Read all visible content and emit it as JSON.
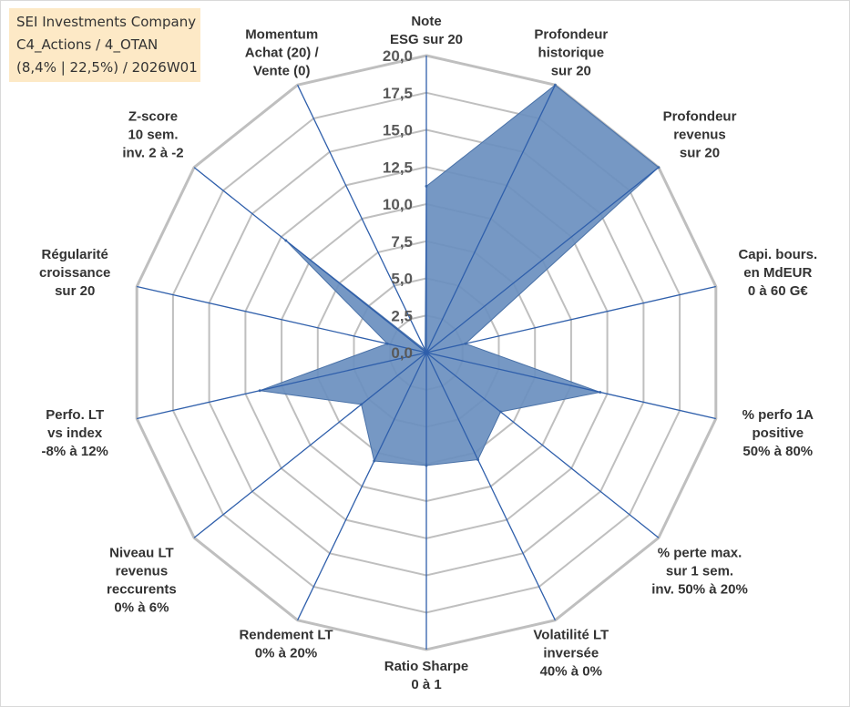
{
  "header": {
    "line1": "SEI Investments Company",
    "line2": "C4_Actions / 4_OTAN",
    "line3": "(8,4% | 22,5%) / 2026W01"
  },
  "colors": {
    "grid": "#bfbfbf",
    "spoke": "#2f5fab",
    "fill": "#6a8fbf",
    "fill_stroke": "#4a72a8",
    "text": "#333333",
    "tick_text": "#595959",
    "title_bg": "#fde9c6"
  },
  "chart_data": {
    "type": "radar",
    "title": "SEI Investments Company",
    "r_range": [
      0,
      20
    ],
    "r_step": 2.5,
    "grid": true,
    "tick_labels": [
      "0,0",
      "2,5",
      "5,0",
      "7,5",
      "10,0",
      "12,5",
      "15,0",
      "17,5",
      "20,0"
    ],
    "axes": [
      {
        "label": [
          "Note",
          "ESG sur 20"
        ],
        "value": 11.2
      },
      {
        "label": [
          "Profondeur",
          "historique",
          "sur 20"
        ],
        "value": 20.0
      },
      {
        "label": [
          "Profondeur",
          "revenus",
          "sur 20"
        ],
        "value": 20.0
      },
      {
        "label": [
          "Capi. bours.",
          "en MdEUR",
          "0 à 60 G€"
        ],
        "value": 2.7
      },
      {
        "label": [
          "% perfo 1A",
          "positive",
          "50% à 80%"
        ],
        "value": 12.0
      },
      {
        "label": [
          "% perte max.",
          "sur 1 sem.",
          "inv. 50% à 20%"
        ],
        "value": 6.4
      },
      {
        "label": [
          "Volatilité LT",
          "inversée",
          "40% à 0%"
        ],
        "value": 8.0
      },
      {
        "label": [
          "Ratio Sharpe",
          "0 à 1"
        ],
        "value": 7.6
      },
      {
        "label": [
          "Rendement LT",
          "0% à 20%"
        ],
        "value": 8.1
      },
      {
        "label": [
          "Niveau LT",
          "revenus",
          "reccurents",
          "0% à 6%"
        ],
        "value": 5.6
      },
      {
        "label": [
          "Perfo. LT",
          "vs index",
          "-8% à 12%"
        ],
        "value": 11.5
      },
      {
        "label": [
          "Régularité",
          "croissance",
          "sur 20"
        ],
        "value": 2.7
      },
      {
        "label": [
          "Z-score",
          "10 sem.",
          "inv. 2 à -2"
        ],
        "value": 12.1
      },
      {
        "label": [
          "Momentum",
          "Achat (20) /",
          "Vente (0)"
        ],
        "value": 0.2
      }
    ]
  }
}
